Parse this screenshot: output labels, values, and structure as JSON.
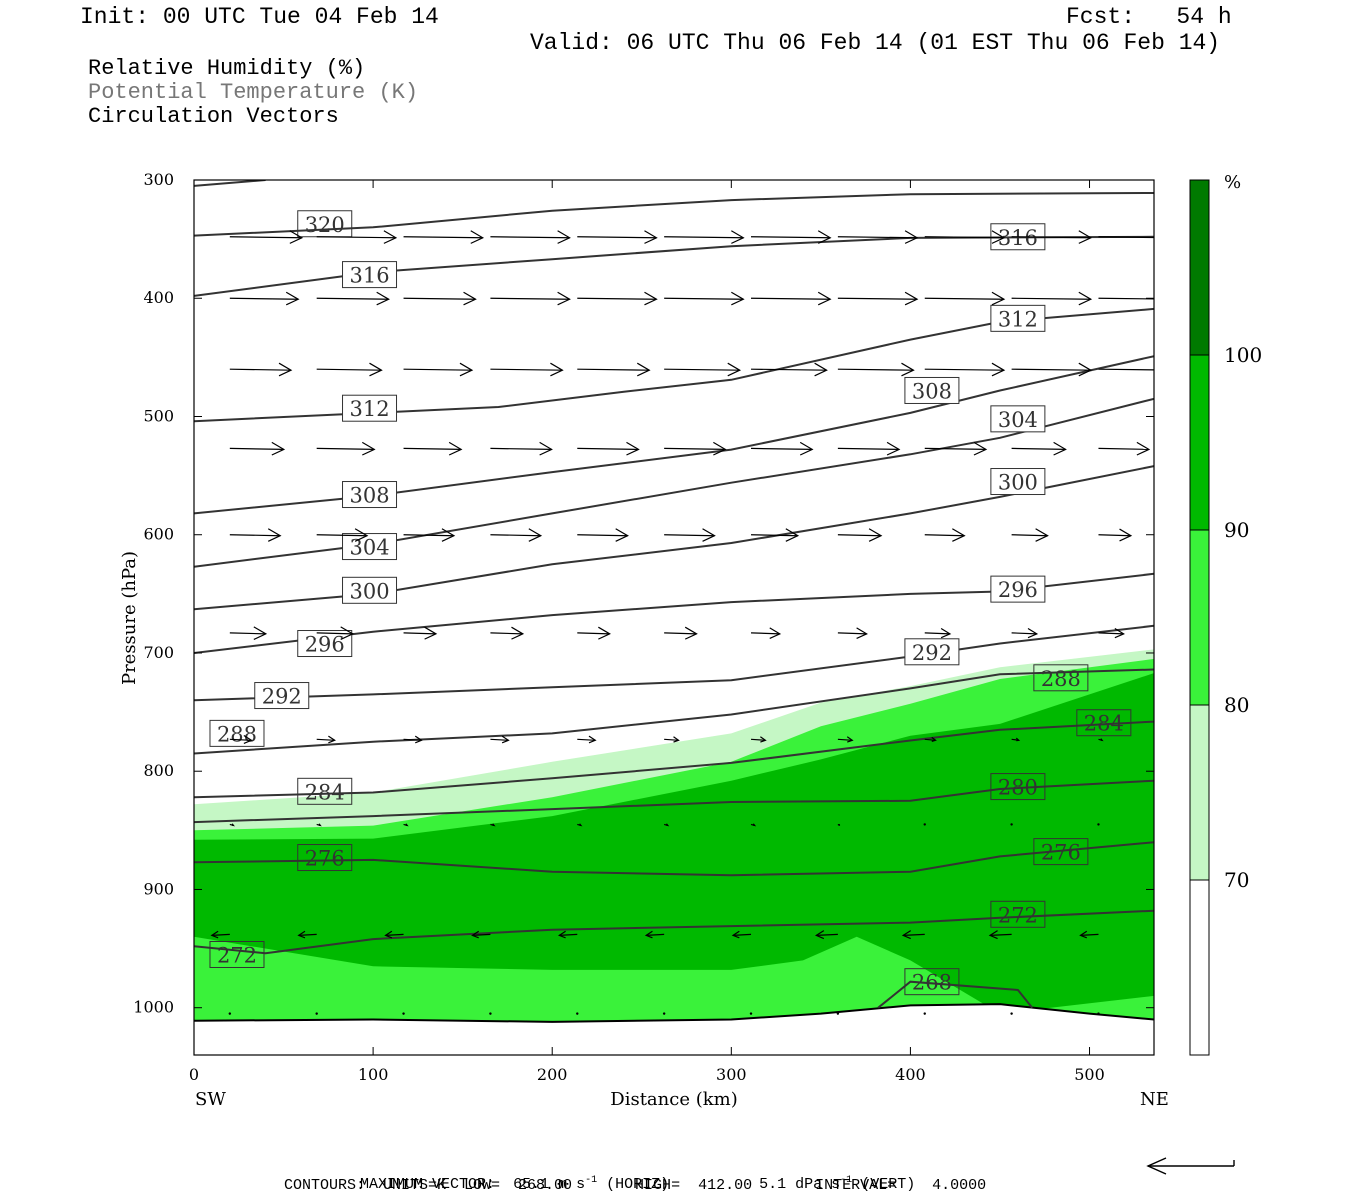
{
  "header": {
    "init": "Init: 00 UTC Tue 04 Feb 14",
    "fcst": "Fcst:   54 h",
    "valid": "Valid: 06 UTC Thu 06 Feb 14 (01 EST Thu 06 Feb 14)"
  },
  "legend": {
    "line1": "Relative Humidity (%)",
    "line2": "Potential Temperature (K)",
    "line3": "Circulation Vectors"
  },
  "footer": {
    "max_vector_label": "MAXIMUM VECTOR:",
    "max_vector_horiz": "65.1 m s",
    "horiz_tag": "(HORIZ)",
    "max_vector_vert": "5.1 dPa s",
    "vert_tag": "(VERT)",
    "exp": "-1",
    "contours": "CONTOURS:  UNITS=K  LOW=  268.00       HIGH=  412.00       INTERVAL=    4.0000"
  },
  "colors": {
    "rh_70": "#c5f7c5",
    "rh_80": "#3af23a",
    "rh_90": "#00b900",
    "rh_100": "#007a00",
    "contour": "#333333"
  },
  "chart_data": {
    "type": "cross-section",
    "xlabel": "Distance (km)",
    "ylabel": "Pressure (hPa)",
    "x_left_end": "SW",
    "x_right_end": "NE",
    "xlim": [
      0,
      536
    ],
    "ylim": [
      1040,
      300
    ],
    "xticks": [
      0,
      100,
      200,
      300,
      400,
      500
    ],
    "yticks": [
      300,
      400,
      500,
      600,
      700,
      800,
      900,
      1000
    ],
    "colorbar": {
      "unit": "%",
      "levels": [
        70,
        80,
        90,
        100
      ]
    },
    "theta_contours": [
      {
        "level": 320,
        "points": [
          [
            0,
            305
          ],
          [
            40,
            300
          ]
        ],
        "labels": [
          [
            73,
            337
          ]
        ]
      },
      {
        "level": 316,
        "points": [
          [
            0,
            347
          ],
          [
            100,
            340
          ],
          [
            200,
            326
          ],
          [
            300,
            317
          ],
          [
            400,
            312
          ],
          [
            536,
            311
          ]
        ],
        "labels": [
          [
            460,
            348
          ]
        ]
      },
      {
        "level": 316,
        "points": [
          [
            0,
            398
          ],
          [
            100,
            378
          ],
          [
            200,
            367
          ],
          [
            300,
            356
          ],
          [
            400,
            349
          ],
          [
            536,
            348
          ]
        ],
        "labels": [
          [
            98,
            380
          ]
        ]
      },
      {
        "level": 312,
        "points": [
          [
            0,
            504
          ],
          [
            100,
            497
          ],
          [
            170,
            492
          ],
          [
            240,
            479
          ],
          [
            300,
            469
          ],
          [
            400,
            435
          ],
          [
            450,
            420
          ],
          [
            536,
            409
          ]
        ],
        "labels": [
          [
            98,
            493
          ],
          [
            460,
            417
          ]
        ]
      },
      {
        "level": 308,
        "points": [
          [
            0,
            582
          ],
          [
            100,
            567
          ],
          [
            200,
            547
          ],
          [
            300,
            528
          ],
          [
            400,
            497
          ],
          [
            450,
            478
          ],
          [
            536,
            449
          ]
        ],
        "labels": [
          [
            98,
            566
          ],
          [
            412,
            478
          ]
        ]
      },
      {
        "level": 304,
        "points": [
          [
            0,
            627
          ],
          [
            100,
            608
          ],
          [
            200,
            582
          ],
          [
            300,
            556
          ],
          [
            400,
            532
          ],
          [
            450,
            518
          ],
          [
            536,
            485
          ]
        ],
        "labels": [
          [
            98,
            610
          ],
          [
            460,
            502
          ]
        ]
      },
      {
        "level": 300,
        "points": [
          [
            0,
            663
          ],
          [
            100,
            650
          ],
          [
            200,
            625
          ],
          [
            300,
            607
          ],
          [
            400,
            582
          ],
          [
            450,
            568
          ],
          [
            536,
            542
          ]
        ],
        "labels": [
          [
            98,
            647
          ],
          [
            460,
            555
          ]
        ]
      },
      {
        "level": 296,
        "points": [
          [
            0,
            700
          ],
          [
            100,
            682
          ],
          [
            200,
            668
          ],
          [
            300,
            657
          ],
          [
            400,
            650
          ],
          [
            450,
            648
          ],
          [
            536,
            633
          ]
        ],
        "labels": [
          [
            73,
            692
          ],
          [
            460,
            646
          ]
        ]
      },
      {
        "level": 292,
        "points": [
          [
            0,
            740
          ],
          [
            100,
            735
          ],
          [
            200,
            729
          ],
          [
            300,
            723
          ],
          [
            400,
            703
          ],
          [
            450,
            692
          ],
          [
            536,
            677
          ]
        ],
        "labels": [
          [
            49,
            736
          ],
          [
            412,
            699
          ]
        ]
      },
      {
        "level": 288,
        "points": [
          [
            0,
            785
          ],
          [
            100,
            775
          ],
          [
            200,
            768
          ],
          [
            300,
            752
          ],
          [
            400,
            730
          ],
          [
            450,
            718
          ],
          [
            536,
            714
          ]
        ],
        "labels": [
          [
            24,
            768
          ],
          [
            484,
            721
          ]
        ]
      },
      {
        "level": 284,
        "points": [
          [
            0,
            822
          ],
          [
            100,
            818
          ],
          [
            200,
            806
          ],
          [
            300,
            793
          ],
          [
            400,
            774
          ],
          [
            450,
            765
          ],
          [
            536,
            758
          ]
        ],
        "labels": [
          [
            73,
            817
          ],
          [
            508,
            759
          ]
        ]
      },
      {
        "level": 280,
        "points": [
          [
            0,
            843
          ],
          [
            100,
            838
          ],
          [
            200,
            832
          ],
          [
            300,
            826
          ],
          [
            400,
            825
          ],
          [
            450,
            815
          ],
          [
            536,
            808
          ]
        ],
        "labels": [
          [
            460,
            813
          ]
        ]
      },
      {
        "level": 276,
        "points": [
          [
            0,
            877
          ],
          [
            100,
            875
          ],
          [
            200,
            885
          ],
          [
            300,
            888
          ],
          [
            400,
            885
          ],
          [
            450,
            872
          ],
          [
            536,
            860
          ]
        ],
        "labels": [
          [
            73,
            873
          ],
          [
            484,
            868
          ]
        ]
      },
      {
        "level": 272,
        "points": [
          [
            0,
            948
          ],
          [
            40,
            954
          ],
          [
            100,
            942
          ],
          [
            200,
            934
          ],
          [
            300,
            931
          ],
          [
            400,
            928
          ],
          [
            450,
            924
          ],
          [
            536,
            918
          ]
        ],
        "labels": [
          [
            24,
            955
          ],
          [
            460,
            921
          ]
        ]
      },
      {
        "level": 268,
        "points": [
          [
            382,
            1000
          ],
          [
            400,
            978
          ],
          [
            460,
            985
          ],
          [
            468,
            1000
          ]
        ],
        "labels": [
          [
            412,
            978
          ]
        ]
      }
    ],
    "surface": [
      [
        0,
        1011
      ],
      [
        100,
        1010
      ],
      [
        200,
        1012
      ],
      [
        300,
        1010
      ],
      [
        350,
        1005
      ],
      [
        400,
        998
      ],
      [
        450,
        997
      ],
      [
        500,
        1005
      ],
      [
        536,
        1010
      ]
    ],
    "rh_regions": [
      {
        "threshold": 70,
        "top": [
          [
            0,
            828
          ],
          [
            100,
            818
          ],
          [
            200,
            792
          ],
          [
            300,
            768
          ],
          [
            350,
            742
          ],
          [
            400,
            728
          ],
          [
            450,
            712
          ],
          [
            536,
            697
          ]
        ]
      },
      {
        "threshold": 80,
        "top": [
          [
            0,
            850
          ],
          [
            100,
            846
          ],
          [
            200,
            822
          ],
          [
            300,
            792
          ],
          [
            350,
            762
          ],
          [
            400,
            743
          ],
          [
            450,
            722
          ],
          [
            536,
            705
          ]
        ]
      },
      {
        "threshold": 90,
        "top": [
          [
            0,
            858
          ],
          [
            100,
            857
          ],
          [
            200,
            838
          ],
          [
            300,
            808
          ],
          [
            350,
            790
          ],
          [
            400,
            770
          ],
          [
            450,
            760
          ],
          [
            536,
            717
          ]
        ]
      },
      {
        "threshold": 90,
        "bottom_zone": [
          [
            0,
            940
          ],
          [
            100,
            965
          ],
          [
            200,
            968
          ],
          [
            300,
            968
          ],
          [
            340,
            960
          ],
          [
            370,
            940
          ],
          [
            400,
            960
          ],
          [
            450,
            1005
          ],
          [
            536,
            990
          ]
        ]
      }
    ],
    "vector_rows": [
      {
        "p": 348,
        "u": [
          40,
          44,
          44,
          44,
          44,
          44,
          44,
          44,
          44,
          44,
          40,
          14
        ]
      },
      {
        "p": 400,
        "u": [
          38,
          40,
          40,
          44,
          44,
          44,
          44,
          44,
          44,
          44,
          44,
          30
        ]
      },
      {
        "p": 460,
        "u": [
          34,
          36,
          38,
          40,
          40,
          42,
          42,
          42,
          44,
          44,
          44,
          34
        ]
      },
      {
        "p": 527,
        "u": [
          30,
          32,
          32,
          34,
          34,
          34,
          34,
          34,
          34,
          30,
          28,
          26
        ]
      },
      {
        "p": 600,
        "u": [
          28,
          28,
          28,
          28,
          28,
          28,
          26,
          24,
          22,
          20,
          18,
          18
        ]
      },
      {
        "p": 683,
        "u": [
          20,
          20,
          18,
          18,
          18,
          18,
          16,
          16,
          14,
          14,
          14,
          14
        ]
      },
      {
        "p": 773,
        "u": [
          12,
          10,
          10,
          10,
          10,
          8,
          8,
          8,
          6,
          4,
          2,
          2
        ]
      },
      {
        "p": 845,
        "u": [
          2,
          2,
          2,
          2,
          2,
          2,
          2,
          1,
          0,
          0,
          0,
          0
        ]
      },
      {
        "p": 938,
        "u": [
          -10,
          -10,
          -10,
          -10,
          -10,
          -10,
          -10,
          -12,
          -12,
          -12,
          -10,
          -10
        ]
      },
      {
        "p": 1005,
        "u": [
          0,
          0,
          0,
          0,
          0,
          0,
          0,
          0,
          0,
          0,
          0,
          0
        ]
      }
    ]
  }
}
